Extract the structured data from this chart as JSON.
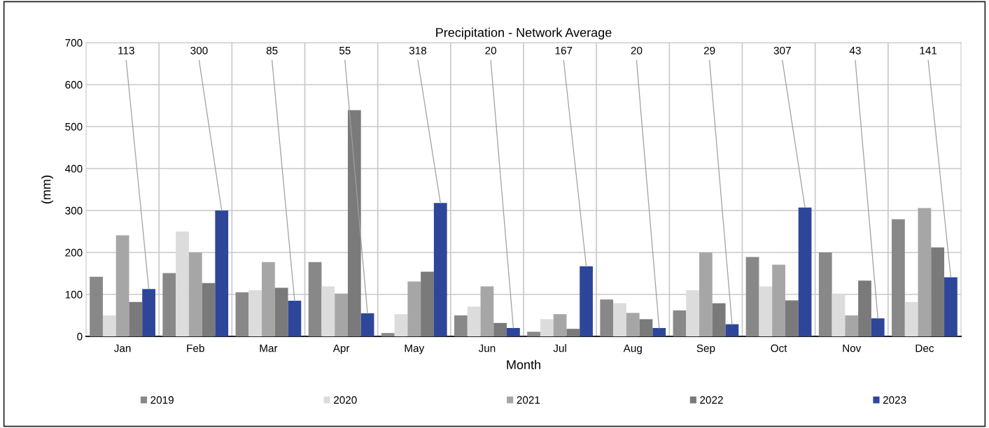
{
  "chart_data": {
    "type": "bar",
    "title": "Precipitation - Network Average",
    "xlabel": "Month",
    "ylabel": "(mm)",
    "categories": [
      "Jan",
      "Feb",
      "Mar",
      "Apr",
      "May",
      "Jun",
      "Jul",
      "Aug",
      "Sep",
      "Oct",
      "Nov",
      "Dec"
    ],
    "series": [
      {
        "name": "2019",
        "color": "#888888",
        "values": [
          142,
          151,
          105,
          177,
          8,
          50,
          11,
          88,
          62,
          189,
          200,
          279
        ]
      },
      {
        "name": "2020",
        "color": "#dcdcdc",
        "values": [
          50,
          250,
          110,
          119,
          53,
          71,
          41,
          79,
          110,
          119,
          102,
          82
        ]
      },
      {
        "name": "2021",
        "color": "#a6a6a6",
        "values": [
          241,
          200,
          177,
          102,
          131,
          119,
          53,
          56,
          200,
          171,
          50,
          306
        ]
      },
      {
        "name": "2022",
        "color": "#7a7a7a",
        "values": [
          82,
          127,
          116,
          539,
          154,
          32,
          18,
          41,
          79,
          86,
          133,
          212
        ]
      },
      {
        "name": "2023",
        "color": "#2e4699",
        "values": [
          113,
          300,
          85,
          55,
          318,
          20,
          167,
          20,
          29,
          307,
          43,
          141
        ],
        "value_labels": [
          "113",
          "300",
          "85",
          "55",
          "318",
          "20",
          "167",
          "20",
          "29",
          "307",
          "43",
          "141"
        ]
      }
    ],
    "ylim": [
      0,
      700
    ],
    "yticks": [
      0,
      100,
      200,
      300,
      400,
      500,
      600,
      700
    ],
    "grid": true,
    "legend": "bottom"
  }
}
